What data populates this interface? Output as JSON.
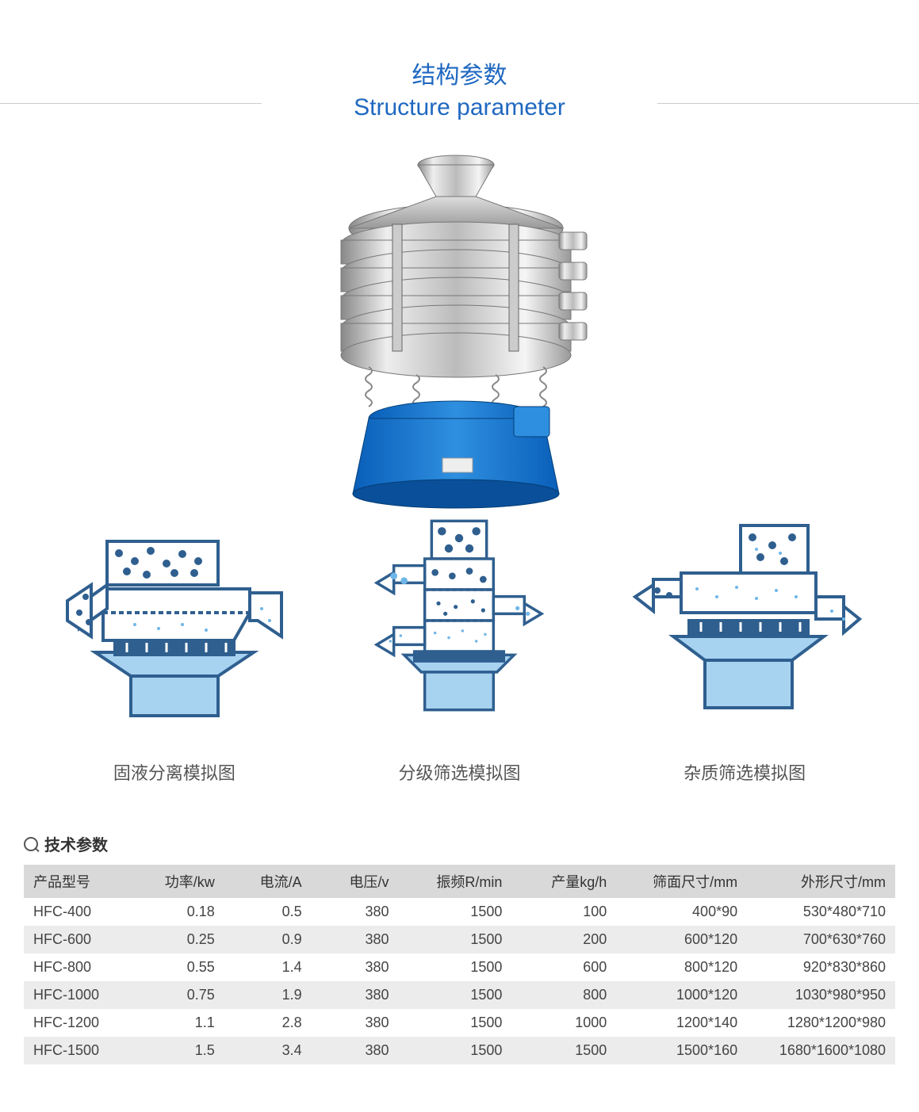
{
  "header": {
    "title_zh": "结构参数",
    "title_en": "Structure parameter",
    "title_color": "#1f68c0",
    "line_color": "#cccccc"
  },
  "diagrams": {
    "items": [
      {
        "label": "固液分离模拟图"
      },
      {
        "label": "分级筛选模拟图"
      },
      {
        "label": "杂质筛选模拟图"
      }
    ],
    "label_color": "#555555",
    "stroke_color": "#2f5f8f",
    "fill_light": "#a7d3f1",
    "fill_dark": "#2f5f8f"
  },
  "tech": {
    "section_title": "技术参数",
    "header_row_bg": "#d9d9d9",
    "row_alt_bg": "#ececec",
    "columns": [
      "产品型号",
      "功率/kw",
      "电流/A",
      "电压/v",
      "振频R/min",
      "产量kg/h",
      "筛面尺寸/mm",
      "外形尺寸/mm"
    ],
    "rows": [
      [
        "HFC-400",
        "0.18",
        "0.5",
        "380",
        "1500",
        "100",
        "400*90",
        "530*480*710"
      ],
      [
        "HFC-600",
        "0.25",
        "0.9",
        "380",
        "1500",
        "200",
        "600*120",
        "700*630*760"
      ],
      [
        "HFC-800",
        "0.55",
        "1.4",
        "380",
        "1500",
        "600",
        "800*120",
        "920*830*860"
      ],
      [
        "HFC-1000",
        "0.75",
        "1.9",
        "380",
        "1500",
        "800",
        "1000*120",
        "1030*980*950"
      ],
      [
        "HFC-1200",
        "1.1",
        "2.8",
        "380",
        "1500",
        "1000",
        "1200*140",
        "1280*1200*980"
      ],
      [
        "HFC-1500",
        "1.5",
        "3.4",
        "380",
        "1500",
        "1500",
        "1500*160",
        "1680*1600*1080"
      ]
    ]
  }
}
